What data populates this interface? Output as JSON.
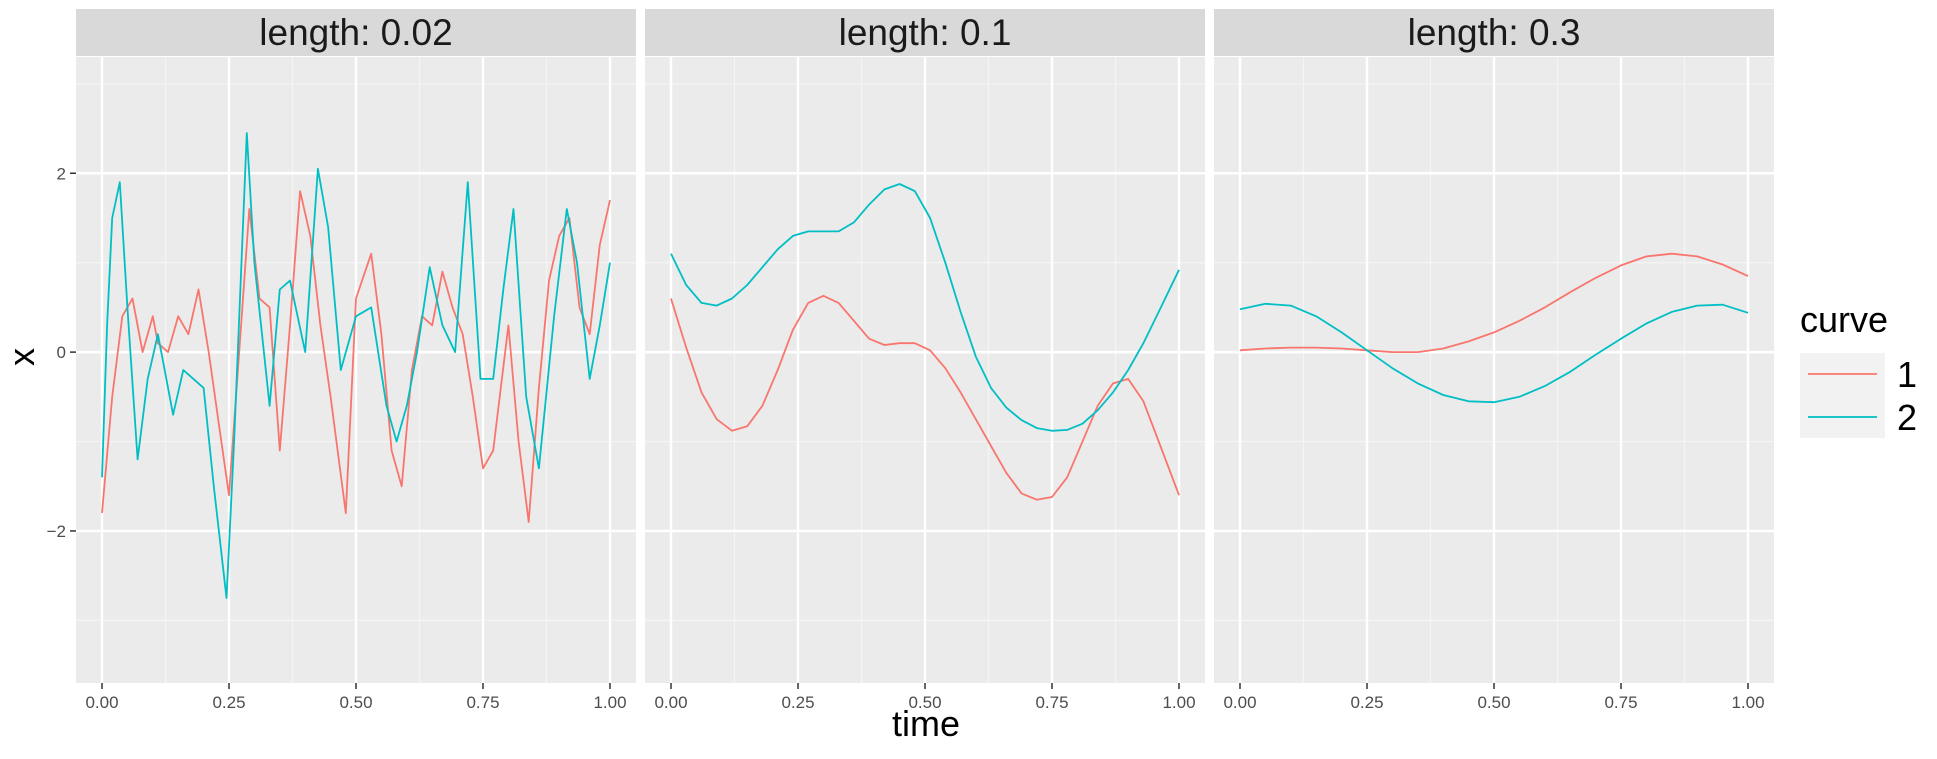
{
  "chart_data": {
    "type": "line",
    "xlabel": "time",
    "ylabel": "x",
    "xlim": [
      0,
      1
    ],
    "ylim": [
      -3.7,
      3.3
    ],
    "x_ticks": [
      0,
      0.25,
      0.5,
      0.75,
      1
    ],
    "x_tick_labels": [
      "0.00",
      "0.25",
      "0.50",
      "0.75",
      "1.00"
    ],
    "y_ticks": [
      -2,
      0,
      2
    ],
    "y_tick_labels": [
      "-2",
      "0",
      "2"
    ],
    "grid": true,
    "legend": {
      "title": "curve",
      "position": "right",
      "entries": [
        {
          "label": "1",
          "color": "#F8766D"
        },
        {
          "label": "2",
          "color": "#00BFC4"
        }
      ]
    },
    "panels": [
      {
        "strip": "length: 0.02",
        "series": [
          {
            "name": "1",
            "color": "#F8766D",
            "x": [
              0.0,
              0.02,
              0.04,
              0.06,
              0.08,
              0.1,
              0.11,
              0.13,
              0.15,
              0.17,
              0.19,
              0.21,
              0.23,
              0.25,
              0.27,
              0.29,
              0.31,
              0.33,
              0.35,
              0.37,
              0.39,
              0.41,
              0.43,
              0.45,
              0.48,
              0.5,
              0.53,
              0.55,
              0.57,
              0.59,
              0.61,
              0.63,
              0.65,
              0.67,
              0.69,
              0.71,
              0.73,
              0.75,
              0.77,
              0.8,
              0.82,
              0.84,
              0.86,
              0.88,
              0.9,
              0.92,
              0.94,
              0.96,
              0.98,
              1.0
            ],
            "y": [
              -1.8,
              -0.5,
              0.4,
              0.6,
              0.0,
              0.4,
              0.1,
              0.0,
              0.4,
              0.2,
              0.7,
              0.0,
              -0.8,
              -1.6,
              0.0,
              1.6,
              0.6,
              0.5,
              -1.1,
              0.3,
              1.8,
              1.3,
              0.3,
              -0.5,
              -1.8,
              0.6,
              1.1,
              0.2,
              -1.1,
              -1.5,
              -0.2,
              0.4,
              0.3,
              0.9,
              0.5,
              0.2,
              -0.5,
              -1.3,
              -1.1,
              0.3,
              -1.0,
              -1.9,
              -0.4,
              0.8,
              1.3,
              1.5,
              0.5,
              0.2,
              1.2,
              1.7
            ]
          },
          {
            "name": "2",
            "color": "#00BFC4",
            "x": [
              0.0,
              0.01,
              0.02,
              0.035,
              0.05,
              0.07,
              0.09,
              0.11,
              0.14,
              0.16,
              0.18,
              0.2,
              0.22,
              0.245,
              0.26,
              0.285,
              0.3,
              0.33,
              0.35,
              0.37,
              0.4,
              0.425,
              0.445,
              0.47,
              0.5,
              0.53,
              0.56,
              0.58,
              0.6,
              0.62,
              0.645,
              0.67,
              0.695,
              0.72,
              0.745,
              0.77,
              0.79,
              0.81,
              0.835,
              0.86,
              0.89,
              0.915,
              0.935,
              0.96,
              0.98,
              1.0
            ],
            "y": [
              -1.4,
              0.3,
              1.5,
              1.9,
              0.5,
              -1.2,
              -0.3,
              0.2,
              -0.7,
              -0.2,
              -0.3,
              -0.4,
              -1.5,
              -2.75,
              -1.0,
              2.45,
              1.0,
              -0.6,
              0.7,
              0.8,
              0.0,
              2.05,
              1.4,
              -0.2,
              0.4,
              0.5,
              -0.6,
              -1.0,
              -0.6,
              0.0,
              0.95,
              0.3,
              0.0,
              1.9,
              -0.3,
              -0.3,
              0.7,
              1.6,
              -0.5,
              -1.3,
              0.4,
              1.6,
              1.0,
              -0.3,
              0.3,
              1.0
            ]
          }
        ]
      },
      {
        "strip": "length: 0.1",
        "series": [
          {
            "name": "1",
            "color": "#F8766D",
            "x": [
              0.0,
              0.03,
              0.06,
              0.09,
              0.12,
              0.15,
              0.18,
              0.21,
              0.24,
              0.27,
              0.3,
              0.33,
              0.36,
              0.39,
              0.42,
              0.45,
              0.48,
              0.51,
              0.54,
              0.57,
              0.6,
              0.63,
              0.66,
              0.69,
              0.72,
              0.75,
              0.78,
              0.81,
              0.84,
              0.87,
              0.9,
              0.93,
              0.96,
              1.0
            ],
            "y": [
              0.6,
              0.05,
              -0.45,
              -0.75,
              -0.88,
              -0.83,
              -0.6,
              -0.2,
              0.25,
              0.55,
              0.63,
              0.55,
              0.35,
              0.15,
              0.08,
              0.1,
              0.1,
              0.02,
              -0.18,
              -0.45,
              -0.75,
              -1.05,
              -1.35,
              -1.58,
              -1.65,
              -1.62,
              -1.4,
              -1.0,
              -0.6,
              -0.35,
              -0.3,
              -0.55,
              -1.0,
              -1.6
            ]
          },
          {
            "name": "2",
            "color": "#00BFC4",
            "x": [
              0.0,
              0.03,
              0.06,
              0.09,
              0.12,
              0.15,
              0.18,
              0.21,
              0.24,
              0.27,
              0.3,
              0.33,
              0.36,
              0.39,
              0.42,
              0.45,
              0.48,
              0.51,
              0.54,
              0.57,
              0.6,
              0.63,
              0.66,
              0.69,
              0.72,
              0.75,
              0.78,
              0.81,
              0.84,
              0.87,
              0.9,
              0.93,
              0.96,
              1.0
            ],
            "y": [
              1.1,
              0.75,
              0.55,
              0.52,
              0.6,
              0.75,
              0.95,
              1.15,
              1.3,
              1.35,
              1.35,
              1.35,
              1.45,
              1.65,
              1.82,
              1.88,
              1.8,
              1.5,
              1.0,
              0.45,
              -0.05,
              -0.4,
              -0.62,
              -0.76,
              -0.85,
              -0.88,
              -0.87,
              -0.8,
              -0.65,
              -0.45,
              -0.2,
              0.1,
              0.45,
              0.92
            ]
          }
        ]
      },
      {
        "strip": "length: 0.3",
        "series": [
          {
            "name": "1",
            "color": "#F8766D",
            "x": [
              0.0,
              0.05,
              0.1,
              0.15,
              0.2,
              0.25,
              0.3,
              0.35,
              0.4,
              0.45,
              0.5,
              0.55,
              0.6,
              0.65,
              0.7,
              0.75,
              0.8,
              0.85,
              0.9,
              0.95,
              1.0
            ],
            "y": [
              0.02,
              0.04,
              0.05,
              0.05,
              0.04,
              0.02,
              0.0,
              0.0,
              0.04,
              0.12,
              0.22,
              0.35,
              0.5,
              0.67,
              0.83,
              0.97,
              1.07,
              1.1,
              1.07,
              0.98,
              0.85
            ]
          },
          {
            "name": "2",
            "color": "#00BFC4",
            "x": [
              0.0,
              0.05,
              0.1,
              0.15,
              0.2,
              0.25,
              0.3,
              0.35,
              0.4,
              0.45,
              0.5,
              0.55,
              0.6,
              0.65,
              0.7,
              0.75,
              0.8,
              0.85,
              0.9,
              0.95,
              1.0
            ],
            "y": [
              0.48,
              0.54,
              0.52,
              0.4,
              0.22,
              0.02,
              -0.18,
              -0.35,
              -0.48,
              -0.55,
              -0.56,
              -0.5,
              -0.38,
              -0.22,
              -0.03,
              0.15,
              0.32,
              0.45,
              0.52,
              0.53,
              0.44
            ]
          }
        ]
      }
    ]
  }
}
